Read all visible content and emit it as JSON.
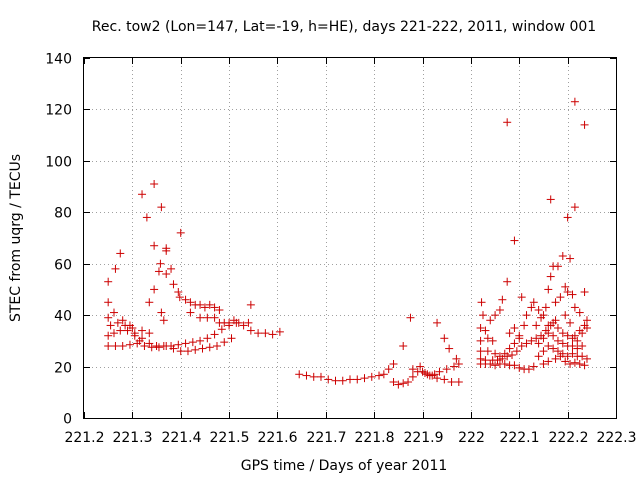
{
  "chart_data": {
    "type": "scatter",
    "title": "Rec. tow2 (Lon=147, Lat=-19, h=HE), days 221-222, 2011, window 001",
    "xlabel": "GPS time / Days of year 2011",
    "ylabel": "STEC from uqrg / TECUs",
    "xlim": [
      221.2,
      222.3
    ],
    "ylim": [
      0,
      140
    ],
    "x_ticks": [
      "221.2",
      "221.3",
      "221.4",
      "221.5",
      "221.6",
      "221.7",
      "221.8",
      "221.9",
      "222",
      "222.1",
      "222.2",
      "222.3"
    ],
    "y_ticks": [
      "0",
      "20",
      "40",
      "60",
      "80",
      "100",
      "120",
      "140"
    ],
    "grid": true,
    "marker": "+",
    "color": "#cc0000",
    "points": [
      [
        221.25,
        28
      ],
      [
        221.265,
        28
      ],
      [
        221.28,
        28
      ],
      [
        221.295,
        28.5
      ],
      [
        221.31,
        29
      ],
      [
        221.325,
        28
      ],
      [
        221.34,
        27.5
      ],
      [
        221.355,
        27.5
      ],
      [
        221.37,
        28
      ],
      [
        221.385,
        27
      ],
      [
        221.4,
        26
      ],
      [
        221.415,
        26
      ],
      [
        221.43,
        26.5
      ],
      [
        221.445,
        27
      ],
      [
        221.46,
        27.5
      ],
      [
        221.475,
        28
      ],
      [
        221.49,
        29.5
      ],
      [
        221.505,
        31
      ],
      [
        221.25,
        32
      ],
      [
        221.262,
        33
      ],
      [
        221.275,
        34
      ],
      [
        221.29,
        34
      ],
      [
        221.305,
        33
      ],
      [
        221.32,
        31
      ],
      [
        221.335,
        29
      ],
      [
        221.35,
        28
      ],
      [
        221.365,
        28
      ],
      [
        221.38,
        28
      ],
      [
        221.395,
        28.5
      ],
      [
        221.41,
        29
      ],
      [
        221.425,
        29.5
      ],
      [
        221.44,
        30
      ],
      [
        221.455,
        31
      ],
      [
        221.47,
        32.5
      ],
      [
        221.485,
        34.5
      ],
      [
        221.5,
        36
      ],
      [
        221.515,
        37
      ],
      [
        221.255,
        36
      ],
      [
        221.27,
        37
      ],
      [
        221.285,
        36
      ],
      [
        221.3,
        35
      ],
      [
        221.32,
        34
      ],
      [
        221.335,
        33
      ],
      [
        221.25,
        39
      ],
      [
        221.262,
        41
      ],
      [
        221.28,
        38
      ],
      [
        221.295,
        36
      ],
      [
        221.305,
        32
      ],
      [
        221.315,
        30
      ],
      [
        221.25,
        45
      ],
      [
        221.265,
        58
      ],
      [
        221.275,
        64
      ],
      [
        221.25,
        53
      ],
      [
        221.32,
        87
      ],
      [
        221.33,
        78
      ],
      [
        221.345,
        91
      ],
      [
        221.36,
        82
      ],
      [
        221.345,
        67
      ],
      [
        221.358,
        60
      ],
      [
        221.37,
        66
      ],
      [
        221.37,
        65
      ],
      [
        221.38,
        58
      ],
      [
        221.385,
        52
      ],
      [
        221.395,
        49
      ],
      [
        221.4,
        72
      ],
      [
        221.398,
        47
      ],
      [
        221.335,
        45
      ],
      [
        221.345,
        50
      ],
      [
        221.355,
        57
      ],
      [
        221.36,
        41
      ],
      [
        221.37,
        56
      ],
      [
        221.365,
        38
      ],
      [
        221.41,
        46
      ],
      [
        221.42,
        45
      ],
      [
        221.43,
        44
      ],
      [
        221.44,
        44
      ],
      [
        221.45,
        43
      ],
      [
        221.46,
        44
      ],
      [
        221.47,
        43
      ],
      [
        221.48,
        42
      ],
      [
        221.42,
        41
      ],
      [
        221.44,
        39
      ],
      [
        221.455,
        39
      ],
      [
        221.47,
        39
      ],
      [
        221.48,
        37
      ],
      [
        221.49,
        37
      ],
      [
        221.5,
        37
      ],
      [
        221.51,
        38
      ],
      [
        221.52,
        37
      ],
      [
        221.53,
        36
      ],
      [
        221.54,
        37
      ],
      [
        221.545,
        44
      ],
      [
        221.545,
        34
      ],
      [
        221.56,
        33
      ],
      [
        221.575,
        33
      ],
      [
        221.59,
        32.5
      ],
      [
        221.605,
        33.5
      ],
      [
        221.645,
        17
      ],
      [
        221.66,
        16.5
      ],
      [
        221.675,
        16
      ],
      [
        221.69,
        16
      ],
      [
        221.705,
        15
      ],
      [
        221.72,
        14.5
      ],
      [
        221.735,
        14.5
      ],
      [
        221.75,
        15
      ],
      [
        221.765,
        15
      ],
      [
        221.78,
        15.5
      ],
      [
        221.795,
        16
      ],
      [
        221.81,
        16.5
      ],
      [
        221.82,
        17
      ],
      [
        221.83,
        19
      ],
      [
        221.84,
        14
      ],
      [
        221.85,
        13
      ],
      [
        221.86,
        13.5
      ],
      [
        221.87,
        14
      ],
      [
        221.88,
        16
      ],
      [
        221.89,
        18
      ],
      [
        221.9,
        18
      ],
      [
        221.91,
        17
      ],
      [
        221.92,
        16.5
      ],
      [
        221.93,
        15.5
      ],
      [
        221.945,
        15
      ],
      [
        221.96,
        14
      ],
      [
        221.975,
        14
      ],
      [
        221.84,
        21
      ],
      [
        221.86,
        28
      ],
      [
        221.875,
        39
      ],
      [
        221.88,
        19
      ],
      [
        221.895,
        20
      ],
      [
        221.905,
        17.5
      ],
      [
        221.915,
        16.5
      ],
      [
        221.925,
        17
      ],
      [
        221.935,
        18
      ],
      [
        221.95,
        19
      ],
      [
        221.965,
        20
      ],
      [
        221.975,
        21
      ],
      [
        221.93,
        37
      ],
      [
        221.945,
        31
      ],
      [
        221.955,
        27
      ],
      [
        221.97,
        23
      ],
      [
        222.02,
        21
      ],
      [
        222.03,
        21
      ],
      [
        222.04,
        21
      ],
      [
        222.05,
        20.5
      ],
      [
        222.06,
        21
      ],
      [
        222.07,
        21
      ],
      [
        222.08,
        20.5
      ],
      [
        222.09,
        20.5
      ],
      [
        222.1,
        19.5
      ],
      [
        222.11,
        19
      ],
      [
        222.12,
        19
      ],
      [
        222.13,
        20
      ],
      [
        222.02,
        23
      ],
      [
        222.03,
        22.5
      ],
      [
        222.045,
        22.5
      ],
      [
        222.055,
        22.5
      ],
      [
        222.065,
        23
      ],
      [
        222.075,
        24
      ],
      [
        222.085,
        24.5
      ],
      [
        222.095,
        26
      ],
      [
        222.105,
        28
      ],
      [
        222.115,
        29
      ],
      [
        222.125,
        30
      ],
      [
        222.135,
        31
      ],
      [
        222.145,
        32
      ],
      [
        222.155,
        34
      ],
      [
        222.165,
        36
      ],
      [
        222.175,
        38
      ],
      [
        222.02,
        26
      ],
      [
        222.035,
        26
      ],
      [
        222.05,
        25
      ],
      [
        222.06,
        24
      ],
      [
        222.07,
        25
      ],
      [
        222.08,
        27
      ],
      [
        222.09,
        29
      ],
      [
        222.1,
        31
      ],
      [
        222.02,
        30
      ],
      [
        222.03,
        34
      ],
      [
        222.04,
        38
      ],
      [
        222.05,
        40
      ],
      [
        222.06,
        42
      ],
      [
        222.065,
        46
      ],
      [
        222.075,
        53
      ],
      [
        222.08,
        33
      ],
      [
        222.09,
        35
      ],
      [
        222.02,
        35
      ],
      [
        222.025,
        40
      ],
      [
        222.022,
        45
      ],
      [
        222.035,
        31
      ],
      [
        222.045,
        30
      ],
      [
        222.075,
        115
      ],
      [
        222.09,
        69
      ],
      [
        222.105,
        47
      ],
      [
        222.1,
        32
      ],
      [
        222.11,
        36
      ],
      [
        222.115,
        40
      ],
      [
        222.125,
        43
      ],
      [
        222.13,
        45
      ],
      [
        222.14,
        42
      ],
      [
        222.135,
        36
      ],
      [
        222.145,
        39
      ],
      [
        222.15,
        40
      ],
      [
        222.155,
        43
      ],
      [
        222.16,
        50
      ],
      [
        222.165,
        55
      ],
      [
        222.17,
        59
      ],
      [
        222.18,
        59
      ],
      [
        222.19,
        63
      ],
      [
        222.2,
        78
      ],
      [
        222.205,
        62
      ],
      [
        222.215,
        82
      ],
      [
        222.2,
        49
      ],
      [
        222.21,
        48
      ],
      [
        222.165,
        85
      ],
      [
        222.175,
        45
      ],
      [
        222.185,
        47
      ],
      [
        222.195,
        51
      ],
      [
        222.195,
        40
      ],
      [
        222.205,
        37
      ],
      [
        222.215,
        32
      ],
      [
        222.225,
        34
      ],
      [
        222.235,
        36
      ],
      [
        222.24,
        38
      ],
      [
        222.215,
        123
      ],
      [
        222.235,
        114
      ],
      [
        222.235,
        49
      ],
      [
        222.215,
        43
      ],
      [
        222.225,
        41
      ],
      [
        222.14,
        24
      ],
      [
        222.15,
        26
      ],
      [
        222.16,
        28
      ],
      [
        222.17,
        27
      ],
      [
        222.18,
        26
      ],
      [
        222.19,
        25
      ],
      [
        222.2,
        24
      ],
      [
        222.21,
        25
      ],
      [
        222.22,
        24
      ],
      [
        222.23,
        24
      ],
      [
        222.24,
        23
      ],
      [
        222.15,
        21
      ],
      [
        222.16,
        22
      ],
      [
        222.175,
        23
      ],
      [
        222.185,
        24
      ],
      [
        222.195,
        22
      ],
      [
        222.205,
        21
      ],
      [
        222.215,
        21.5
      ],
      [
        222.225,
        21
      ],
      [
        222.235,
        20.5
      ],
      [
        222.14,
        29
      ],
      [
        222.15,
        31
      ],
      [
        222.16,
        33
      ],
      [
        222.17,
        32
      ],
      [
        222.18,
        30
      ],
      [
        222.19,
        29
      ],
      [
        222.2,
        28
      ],
      [
        222.21,
        28
      ],
      [
        222.22,
        27
      ],
      [
        222.23,
        28
      ],
      [
        222.16,
        36
      ],
      [
        222.17,
        37
      ],
      [
        222.18,
        35
      ],
      [
        222.19,
        33
      ],
      [
        222.2,
        32
      ],
      [
        222.21,
        31
      ],
      [
        222.22,
        30
      ],
      [
        222.23,
        33
      ],
      [
        222.24,
        35
      ]
    ]
  }
}
